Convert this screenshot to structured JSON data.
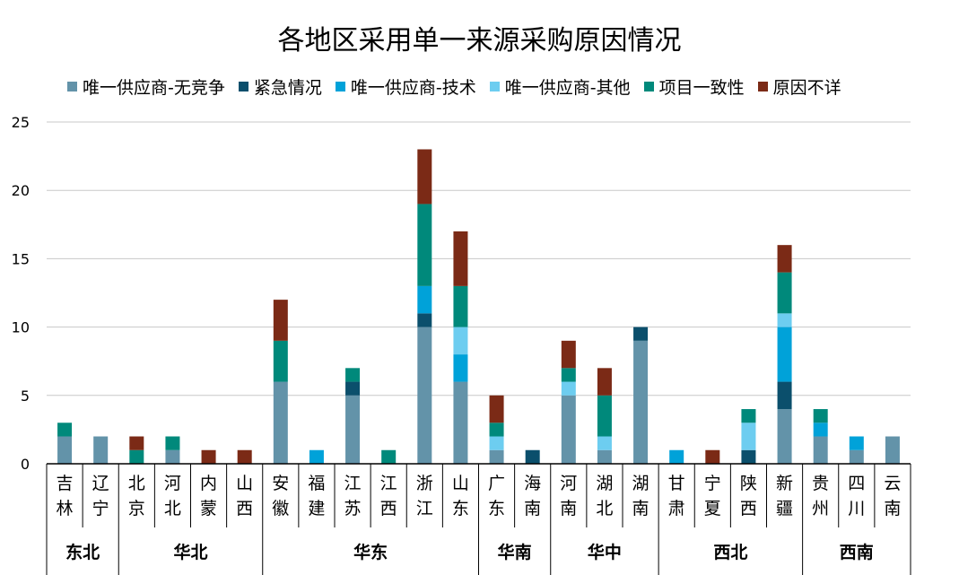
{
  "chart_data": {
    "type": "bar",
    "stacked": true,
    "title": "各地区采用单一来源采购原因情况",
    "xlabel": "",
    "ylabel": "",
    "ylim": [
      0,
      25
    ],
    "yticks": [
      0,
      5,
      10,
      15,
      20,
      25
    ],
    "grid": true,
    "legend_position": "top",
    "categories": [
      "吉林",
      "辽宁",
      "北京",
      "河北",
      "内蒙",
      "山西",
      "安徽",
      "福建",
      "江苏",
      "江西",
      "浙江",
      "山东",
      "广东",
      "海南",
      "河南",
      "湖北",
      "湖南",
      "甘肃",
      "宁夏",
      "陕西",
      "新疆",
      "贵州",
      "四川",
      "云南"
    ],
    "groups": [
      {
        "name": "东北",
        "categories": [
          "吉林",
          "辽宁"
        ]
      },
      {
        "name": "华北",
        "categories": [
          "北京",
          "河北",
          "内蒙",
          "山西"
        ]
      },
      {
        "name": "华东",
        "categories": [
          "安徽",
          "福建",
          "江苏",
          "江西",
          "浙江",
          "山东"
        ]
      },
      {
        "name": "华南",
        "categories": [
          "广东",
          "海南"
        ]
      },
      {
        "name": "华中",
        "categories": [
          "河南",
          "湖北",
          "湖南"
        ]
      },
      {
        "name": "西北",
        "categories": [
          "甘肃",
          "宁夏",
          "陕西",
          "新疆"
        ]
      },
      {
        "name": "西南",
        "categories": [
          "贵州",
          "四川",
          "云南"
        ]
      }
    ],
    "series": [
      {
        "name": "唯一供应商-无竞争",
        "color": "#6393A9",
        "values": [
          2,
          2,
          0,
          1,
          0,
          0,
          6,
          0,
          5,
          0,
          10,
          6,
          1,
          0,
          5,
          1,
          9,
          0,
          0,
          0,
          4,
          2,
          1,
          2
        ]
      },
      {
        "name": "紧急情况",
        "color": "#0B4F6C",
        "values": [
          0,
          0,
          0,
          0,
          0,
          0,
          0,
          0,
          1,
          0,
          1,
          0,
          0,
          1,
          0,
          0,
          1,
          0,
          0,
          1,
          2,
          0,
          0,
          0
        ]
      },
      {
        "name": "唯一供应商-技术",
        "color": "#00A2D9",
        "values": [
          0,
          0,
          0,
          0,
          0,
          0,
          0,
          1,
          0,
          0,
          2,
          2,
          0,
          0,
          0,
          0,
          0,
          1,
          0,
          0,
          4,
          1,
          1,
          0
        ]
      },
      {
        "name": "唯一供应商-其他",
        "color": "#6DCDF0",
        "values": [
          0,
          0,
          0,
          0,
          0,
          0,
          0,
          0,
          0,
          0,
          0,
          2,
          1,
          0,
          1,
          1,
          0,
          0,
          0,
          2,
          1,
          0,
          0,
          0
        ]
      },
      {
        "name": "项目一致性",
        "color": "#00897B",
        "values": [
          1,
          0,
          1,
          1,
          0,
          0,
          3,
          0,
          1,
          1,
          6,
          3,
          1,
          0,
          1,
          3,
          0,
          0,
          0,
          1,
          3,
          1,
          0,
          0
        ]
      },
      {
        "name": "原因不详",
        "color": "#7B2A16",
        "values": [
          0,
          0,
          1,
          0,
          1,
          1,
          3,
          0,
          0,
          0,
          4,
          4,
          2,
          0,
          2,
          2,
          0,
          0,
          1,
          0,
          2,
          0,
          0,
          0
        ]
      }
    ]
  }
}
